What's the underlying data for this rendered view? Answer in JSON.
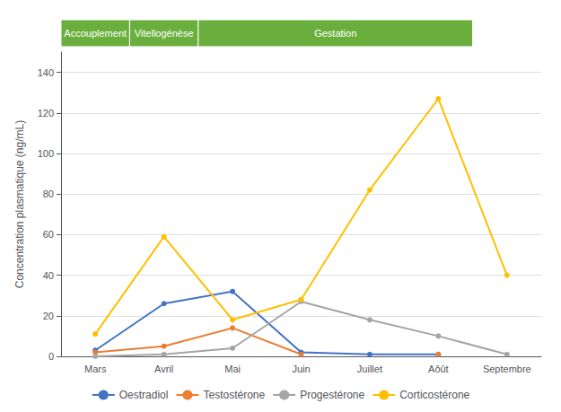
{
  "chart_data": {
    "type": "line",
    "categories": [
      "Mars",
      "Avril",
      "Mai",
      "Juin",
      "Juillet",
      "Aôût",
      "Septembre"
    ],
    "series": [
      {
        "name": "Oestradiol",
        "color": "#4472C4",
        "values": [
          3,
          26,
          32,
          2,
          1,
          1,
          null
        ]
      },
      {
        "name": "Testostérone",
        "color": "#ED7D31",
        "values": [
          2,
          5,
          14,
          1,
          null,
          1,
          null
        ]
      },
      {
        "name": "Progestérone",
        "color": "#A5A5A5",
        "values": [
          0,
          1,
          4,
          27,
          18,
          10,
          1
        ]
      },
      {
        "name": "Corticostérone",
        "color": "#FFC000",
        "values": [
          11,
          59,
          18,
          28,
          82,
          127,
          40
        ]
      }
    ],
    "ylabel": "Concentration plasmatique (ng/mL)",
    "ylim": [
      0,
      150
    ],
    "yticks": [
      0,
      20,
      40,
      60,
      80,
      100,
      120,
      140
    ],
    "grid": true,
    "legend": "bottom",
    "marker": "circle",
    "annotations": [
      {
        "text": "Accouplement",
        "from": "Mars",
        "to": "Mars",
        "color": "#6AAF3D"
      },
      {
        "text": "Vitellogénèse",
        "from": "Avril",
        "to": "Avril",
        "color": "#6AAF3D"
      },
      {
        "text": "Gestation",
        "from": "Mai",
        "to": "Aôût",
        "color": "#6AAF3D"
      }
    ]
  }
}
